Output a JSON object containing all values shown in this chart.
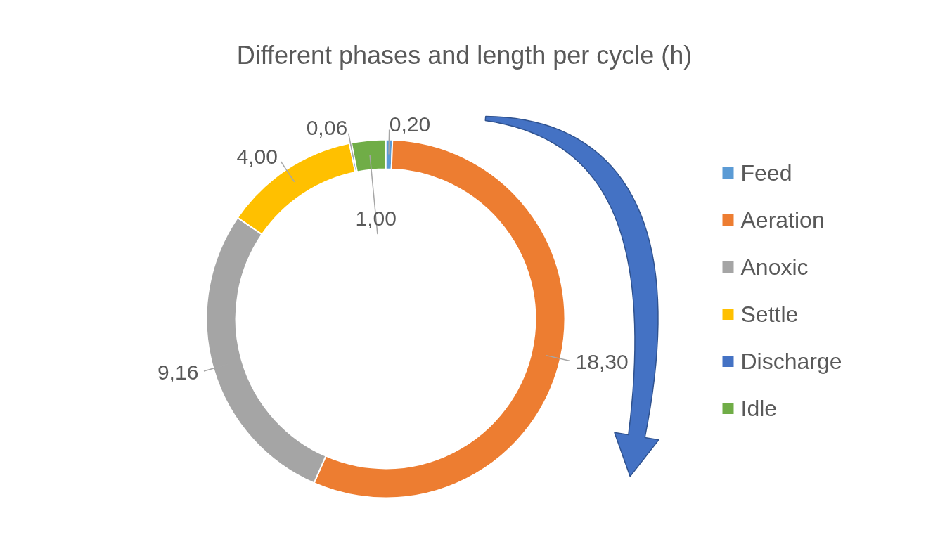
{
  "chart_data": {
    "type": "donut",
    "title": "Different phases and length per cycle (h)",
    "categories": [
      "Feed",
      "Aeration",
      "Anoxic",
      "Settle",
      "Discharge",
      "Idle"
    ],
    "values": [
      0.2,
      18.3,
      9.16,
      4.0,
      0.06,
      1.0
    ],
    "colors": [
      "#5b9bd5",
      "#ed7d31",
      "#a5a5a5",
      "#ffc000",
      "#4472c4",
      "#70ad47"
    ],
    "value_labels": [
      "0,20",
      "18,30",
      "9,16",
      "4,00",
      "0,06",
      "1,00"
    ],
    "legend": "right"
  }
}
